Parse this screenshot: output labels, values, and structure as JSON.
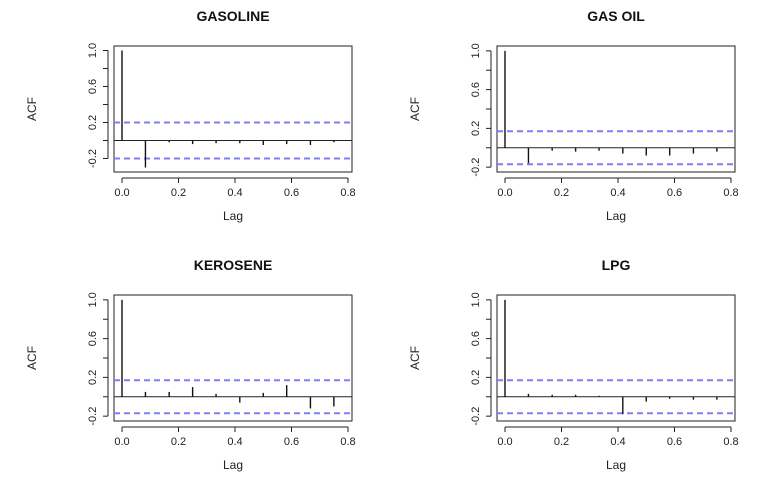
{
  "chart_data": [
    {
      "type": "bar",
      "title": "GASOLINE",
      "xlabel": "Lag",
      "ylabel": "ACF",
      "xlim": [
        0.0,
        0.8
      ],
      "ylim": [
        -0.35,
        1.05
      ],
      "yticks": [
        "-0.2",
        "0.2",
        "0.6",
        "1.0"
      ],
      "xticks": [
        "0.0",
        "0.2",
        "0.4",
        "0.6",
        "0.8"
      ],
      "ci": 0.2,
      "x": [
        0.0,
        0.083,
        0.167,
        0.25,
        0.333,
        0.417,
        0.5,
        0.583,
        0.667,
        0.75
      ],
      "values": [
        1.0,
        -0.3,
        -0.02,
        -0.04,
        -0.03,
        -0.03,
        -0.05,
        -0.04,
        -0.05,
        -0.02
      ]
    },
    {
      "type": "bar",
      "title": "GAS OIL",
      "xlabel": "Lag",
      "ylabel": "ACF",
      "xlim": [
        0.0,
        0.8
      ],
      "ylim": [
        -0.25,
        1.05
      ],
      "yticks": [
        "-0.2",
        "0.2",
        "0.6",
        "1.0"
      ],
      "xticks": [
        "0.0",
        "0.2",
        "0.4",
        "0.6",
        "0.8"
      ],
      "ci": 0.17,
      "x": [
        0.0,
        0.083,
        0.167,
        0.25,
        0.333,
        0.417,
        0.5,
        0.583,
        0.667,
        0.75
      ],
      "values": [
        1.0,
        -0.16,
        -0.03,
        -0.04,
        -0.03,
        -0.06,
        -0.08,
        -0.08,
        -0.06,
        -0.04
      ]
    },
    {
      "type": "bar",
      "title": "KEROSENE",
      "xlabel": "Lag",
      "ylabel": "ACF",
      "xlim": [
        0.0,
        0.8
      ],
      "ylim": [
        -0.25,
        1.05
      ],
      "yticks": [
        "-0.2",
        "0.2",
        "0.6",
        "1.0"
      ],
      "xticks": [
        "0.0",
        "0.2",
        "0.4",
        "0.6",
        "0.8"
      ],
      "ci": 0.17,
      "x": [
        0.0,
        0.083,
        0.167,
        0.25,
        0.333,
        0.417,
        0.5,
        0.583,
        0.667,
        0.75
      ],
      "values": [
        1.0,
        0.05,
        0.05,
        0.1,
        0.03,
        -0.06,
        0.04,
        0.12,
        -0.12,
        -0.1
      ]
    },
    {
      "type": "bar",
      "title": "LPG",
      "xlabel": "Lag",
      "ylabel": "ACF",
      "xlim": [
        0.0,
        0.8
      ],
      "ylim": [
        -0.25,
        1.05
      ],
      "yticks": [
        "-0.2",
        "0.2",
        "0.6",
        "1.0"
      ],
      "xticks": [
        "0.0",
        "0.2",
        "0.4",
        "0.6",
        "0.8"
      ],
      "ci": 0.17,
      "x": [
        0.0,
        0.083,
        0.167,
        0.25,
        0.333,
        0.417,
        0.5,
        0.583,
        0.667,
        0.75
      ],
      "values": [
        1.0,
        0.03,
        0.02,
        0.02,
        0.01,
        -0.18,
        -0.05,
        -0.02,
        -0.03,
        -0.03
      ]
    }
  ],
  "colors": {
    "axis": "#222222",
    "bar": "#111111",
    "ci": "#7f7ff0"
  }
}
